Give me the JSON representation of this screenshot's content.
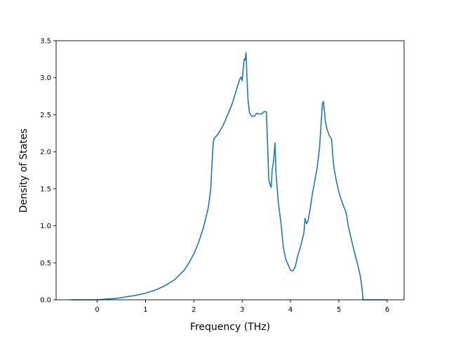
{
  "chart_data": {
    "type": "line",
    "xlabel": "Frequency (THz)",
    "ylabel": "Density of States",
    "xlim": [
      -0.85,
      6.35
    ],
    "ylim": [
      0.0,
      3.5
    ],
    "xticks": [
      0,
      1,
      2,
      3,
      4,
      5,
      6
    ],
    "yticks": [
      0.0,
      0.5,
      1.0,
      1.5,
      2.0,
      2.5,
      3.0,
      3.5
    ],
    "xtick_labels": [
      "0",
      "1",
      "2",
      "3",
      "4",
      "5",
      "6"
    ],
    "ytick_labels": [
      "0.0",
      "0.5",
      "1.0",
      "1.5",
      "2.0",
      "2.5",
      "3.0",
      "3.5"
    ],
    "grid": false,
    "line_color": "#1f77b4",
    "series": [
      {
        "x": [
          -0.55,
          -0.3,
          0.0,
          0.2,
          0.4,
          0.6,
          0.8,
          1.0,
          1.2,
          1.4,
          1.6,
          1.8,
          1.9,
          2.0,
          2.1,
          2.2,
          2.3,
          2.35,
          2.38,
          2.4,
          2.42,
          2.45,
          2.5,
          2.6,
          2.7,
          2.8,
          2.9,
          2.95,
          2.98,
          3.0,
          3.02,
          3.04,
          3.06,
          3.08,
          3.1,
          3.12,
          3.15,
          3.2,
          3.25,
          3.3,
          3.35,
          3.4,
          3.45,
          3.5,
          3.52,
          3.55,
          3.58,
          3.6,
          3.62,
          3.65,
          3.68,
          3.7,
          3.75,
          3.8,
          3.85,
          3.9,
          4.0,
          4.05,
          4.1,
          4.15,
          4.2,
          4.25,
          4.28,
          4.3,
          4.33,
          4.36,
          4.4,
          4.45,
          4.5,
          4.55,
          4.6,
          4.63,
          4.66,
          4.68,
          4.7,
          4.72,
          4.75,
          4.8,
          4.85,
          4.88,
          4.9,
          4.95,
          5.0,
          5.05,
          5.1,
          5.15,
          5.2,
          5.3,
          5.4,
          5.45,
          5.48,
          5.5,
          5.6,
          6.0
        ],
        "y": [
          0.0,
          0.0,
          0.0,
          0.01,
          0.02,
          0.04,
          0.06,
          0.09,
          0.13,
          0.19,
          0.27,
          0.4,
          0.5,
          0.62,
          0.78,
          0.98,
          1.25,
          1.5,
          1.9,
          2.12,
          2.18,
          2.2,
          2.24,
          2.35,
          2.5,
          2.66,
          2.88,
          2.98,
          3.01,
          2.96,
          3.1,
          3.25,
          3.24,
          3.34,
          2.98,
          2.7,
          2.53,
          2.48,
          2.48,
          2.52,
          2.51,
          2.51,
          2.54,
          2.54,
          2.2,
          1.62,
          1.55,
          1.52,
          1.75,
          1.88,
          2.12,
          1.7,
          1.3,
          1.05,
          0.72,
          0.55,
          0.4,
          0.39,
          0.45,
          0.6,
          0.7,
          0.83,
          0.92,
          1.1,
          1.03,
          1.06,
          1.2,
          1.42,
          1.6,
          1.78,
          2.05,
          2.35,
          2.65,
          2.68,
          2.56,
          2.42,
          2.32,
          2.22,
          2.17,
          1.9,
          1.78,
          1.6,
          1.46,
          1.35,
          1.26,
          1.18,
          0.98,
          0.7,
          0.45,
          0.3,
          0.15,
          0.0,
          0.0,
          0.0
        ]
      }
    ]
  }
}
